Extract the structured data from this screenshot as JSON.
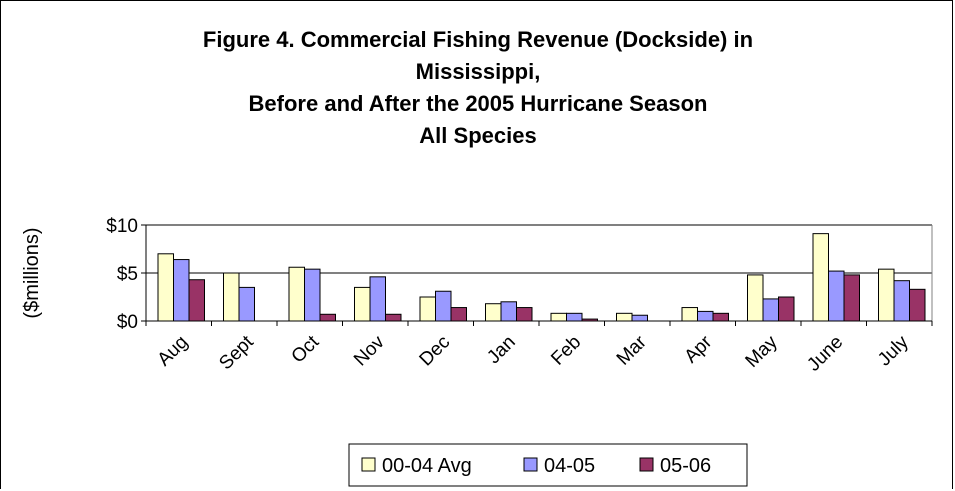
{
  "chart_data": {
    "type": "bar",
    "title": [
      "Figure 4. Commercial Fishing Revenue (Dockside) in",
      "Mississippi,",
      "Before and After the 2005 Hurricane Season",
      "All Species"
    ],
    "ylabel": "($millions)",
    "xlabel": "",
    "ylim": [
      0,
      10
    ],
    "yticks": [
      {
        "value": 0,
        "label": "$0"
      },
      {
        "value": 5,
        "label": "$5"
      },
      {
        "value": 10,
        "label": "$10"
      }
    ],
    "grid": true,
    "legend_position": "bottom",
    "categories": [
      "Aug",
      "Sept",
      "Oct",
      "Nov",
      "Dec",
      "Jan",
      "Feb",
      "Mar",
      "Apr",
      "May",
      "June",
      "July"
    ],
    "series": [
      {
        "name": "00-04 Avg",
        "color": "#ffffcc",
        "values": [
          7.0,
          5.0,
          5.6,
          3.5,
          2.5,
          1.8,
          0.8,
          0.8,
          1.4,
          4.8,
          9.1,
          5.4
        ]
      },
      {
        "name": "04-05",
        "color": "#9999ff",
        "values": [
          6.4,
          3.5,
          5.4,
          4.6,
          3.1,
          2.0,
          0.8,
          0.6,
          1.0,
          2.3,
          5.2,
          4.2
        ]
      },
      {
        "name": "05-06",
        "color": "#993366",
        "values": [
          4.3,
          0,
          0.7,
          0.7,
          1.4,
          1.4,
          0.2,
          0,
          0.8,
          2.5,
          4.8,
          3.3
        ]
      }
    ]
  }
}
